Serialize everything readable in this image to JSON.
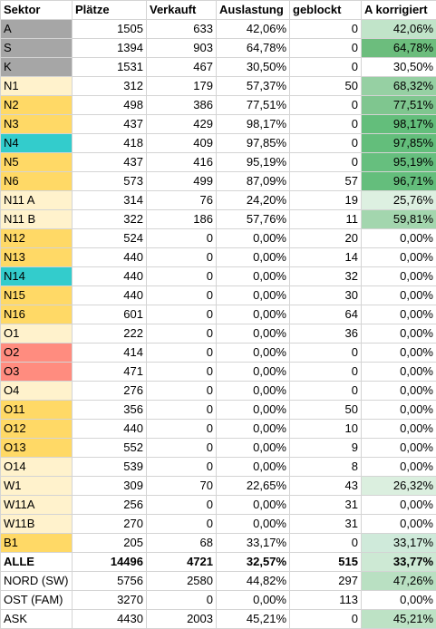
{
  "headers": [
    "Sektor",
    "Plätze",
    "Verkauft",
    "Auslastung",
    "geblockt",
    "A korrigiert"
  ],
  "rows": [
    {
      "sektor": "A",
      "plaetze": "1505",
      "verkauft": "633",
      "auslastung": "42,06%",
      "geblockt": "0",
      "korr": "42,06%",
      "sektor_color": "#a6a6a6",
      "korr_color": "#c1e4c9"
    },
    {
      "sektor": "S",
      "plaetze": "1394",
      "verkauft": "903",
      "auslastung": "64,78%",
      "geblockt": "0",
      "korr": "64,78%",
      "sektor_color": "#a6a6a6",
      "korr_color": "#6cbd7d"
    },
    {
      "sektor": "K",
      "plaetze": "1531",
      "verkauft": "467",
      "auslastung": "30,50%",
      "geblockt": "0",
      "korr": "30,50%",
      "sektor_color": "#a6a6a6",
      "korr_color": "#ffffff"
    },
    {
      "sektor": "N1",
      "plaetze": "312",
      "verkauft": "179",
      "auslastung": "57,37%",
      "geblockt": "50",
      "korr": "68,32%",
      "sektor_color": "#fff2cc",
      "korr_color": "#96d0a3"
    },
    {
      "sektor": "N2",
      "plaetze": "498",
      "verkauft": "386",
      "auslastung": "77,51%",
      "geblockt": "0",
      "korr": "77,51%",
      "sektor_color": "#ffd966",
      "korr_color": "#7fc68f"
    },
    {
      "sektor": "N3",
      "plaetze": "437",
      "verkauft": "429",
      "auslastung": "98,17%",
      "geblockt": "0",
      "korr": "98,17%",
      "sektor_color": "#ffd966",
      "korr_color": "#63be7b"
    },
    {
      "sektor": "N4",
      "plaetze": "418",
      "verkauft": "409",
      "auslastung": "97,85%",
      "geblockt": "0",
      "korr": "97,85%",
      "sektor_color": "#33cccc",
      "korr_color": "#63be7b"
    },
    {
      "sektor": "N5",
      "plaetze": "437",
      "verkauft": "416",
      "auslastung": "95,19%",
      "geblockt": "0",
      "korr": "95,19%",
      "sektor_color": "#ffd966",
      "korr_color": "#66bf7e"
    },
    {
      "sektor": "N6",
      "plaetze": "573",
      "verkauft": "499",
      "auslastung": "87,09%",
      "geblockt": "57",
      "korr": "96,71%",
      "sektor_color": "#ffd966",
      "korr_color": "#64be7c"
    },
    {
      "sektor": "N11 A",
      "plaetze": "314",
      "verkauft": "76",
      "auslastung": "24,20%",
      "geblockt": "19",
      "korr": "25,76%",
      "sektor_color": "#fff2cc",
      "korr_color": "#ddf0e1"
    },
    {
      "sektor": "N11 B",
      "plaetze": "322",
      "verkauft": "186",
      "auslastung": "57,76%",
      "geblockt": "11",
      "korr": "59,81%",
      "sektor_color": "#fff2cc",
      "korr_color": "#a3d6ae"
    },
    {
      "sektor": "N12",
      "plaetze": "524",
      "verkauft": "0",
      "auslastung": "0,00%",
      "geblockt": "20",
      "korr": "0,00%",
      "sektor_color": "#ffd966",
      "korr_color": "#ffffff"
    },
    {
      "sektor": "N13",
      "plaetze": "440",
      "verkauft": "0",
      "auslastung": "0,00%",
      "geblockt": "14",
      "korr": "0,00%",
      "sektor_color": "#ffd966",
      "korr_color": "#ffffff"
    },
    {
      "sektor": "N14",
      "plaetze": "440",
      "verkauft": "0",
      "auslastung": "0,00%",
      "geblockt": "32",
      "korr": "0,00%",
      "sektor_color": "#33cccc",
      "korr_color": "#ffffff"
    },
    {
      "sektor": "N15",
      "plaetze": "440",
      "verkauft": "0",
      "auslastung": "0,00%",
      "geblockt": "30",
      "korr": "0,00%",
      "sektor_color": "#ffd966",
      "korr_color": "#ffffff"
    },
    {
      "sektor": "N16",
      "plaetze": "601",
      "verkauft": "0",
      "auslastung": "0,00%",
      "geblockt": "64",
      "korr": "0,00%",
      "sektor_color": "#ffd966",
      "korr_color": "#ffffff"
    },
    {
      "sektor": "O1",
      "plaetze": "222",
      "verkauft": "0",
      "auslastung": "0,00%",
      "geblockt": "36",
      "korr": "0,00%",
      "sektor_color": "#fff2cc",
      "korr_color": "#ffffff"
    },
    {
      "sektor": "O2",
      "plaetze": "414",
      "verkauft": "0",
      "auslastung": "0,00%",
      "geblockt": "0",
      "korr": "0,00%",
      "sektor_color": "#ff8c7f",
      "korr_color": "#ffffff"
    },
    {
      "sektor": "O3",
      "plaetze": "471",
      "verkauft": "0",
      "auslastung": "0,00%",
      "geblockt": "0",
      "korr": "0,00%",
      "sektor_color": "#ff8c7f",
      "korr_color": "#ffffff"
    },
    {
      "sektor": "O4",
      "plaetze": "276",
      "verkauft": "0",
      "auslastung": "0,00%",
      "geblockt": "0",
      "korr": "0,00%",
      "sektor_color": "#fff2cc",
      "korr_color": "#ffffff"
    },
    {
      "sektor": "O11",
      "plaetze": "356",
      "verkauft": "0",
      "auslastung": "0,00%",
      "geblockt": "50",
      "korr": "0,00%",
      "sektor_color": "#ffd966",
      "korr_color": "#ffffff"
    },
    {
      "sektor": "O12",
      "plaetze": "440",
      "verkauft": "0",
      "auslastung": "0,00%",
      "geblockt": "10",
      "korr": "0,00%",
      "sektor_color": "#ffd966",
      "korr_color": "#ffffff"
    },
    {
      "sektor": "O13",
      "plaetze": "552",
      "verkauft": "0",
      "auslastung": "0,00%",
      "geblockt": "9",
      "korr": "0,00%",
      "sektor_color": "#ffd966",
      "korr_color": "#ffffff"
    },
    {
      "sektor": "O14",
      "plaetze": "539",
      "verkauft": "0",
      "auslastung": "0,00%",
      "geblockt": "8",
      "korr": "0,00%",
      "sektor_color": "#fff2cc",
      "korr_color": "#ffffff"
    },
    {
      "sektor": "W1",
      "plaetze": "309",
      "verkauft": "70",
      "auslastung": "22,65%",
      "geblockt": "43",
      "korr": "26,32%",
      "sektor_color": "#fff2cc",
      "korr_color": "#dbefdf"
    },
    {
      "sektor": "W11A",
      "plaetze": "256",
      "verkauft": "0",
      "auslastung": "0,00%",
      "geblockt": "31",
      "korr": "0,00%",
      "sektor_color": "#fff2cc",
      "korr_color": "#ffffff"
    },
    {
      "sektor": "W11B",
      "plaetze": "270",
      "verkauft": "0",
      "auslastung": "0,00%",
      "geblockt": "31",
      "korr": "0,00%",
      "sektor_color": "#fff2cc",
      "korr_color": "#ffffff"
    },
    {
      "sektor": "B1",
      "plaetze": "205",
      "verkauft": "68",
      "auslastung": "33,17%",
      "geblockt": "0",
      "korr": "33,17%",
      "sektor_color": "#ffd966",
      "korr_color": "#cfeada"
    },
    {
      "sektor": "ALLE",
      "plaetze": "14496",
      "verkauft": "4721",
      "auslastung": "32,57%",
      "geblockt": "515",
      "korr": "33,77%",
      "sektor_color": "#ffffff",
      "korr_color": "#cde9d4",
      "bold": true
    },
    {
      "sektor": "NORD (SW)",
      "plaetze": "5756",
      "verkauft": "2580",
      "auslastung": "44,82%",
      "geblockt": "297",
      "korr": "47,26%",
      "sektor_color": "#ffffff",
      "korr_color": "#b9e0c2"
    },
    {
      "sektor": "OST (FAM)",
      "plaetze": "3270",
      "verkauft": "0",
      "auslastung": "0,00%",
      "geblockt": "113",
      "korr": "0,00%",
      "sektor_color": "#ffffff",
      "korr_color": "#ffffff"
    },
    {
      "sektor": "ASK",
      "plaetze": "4430",
      "verkauft": "2003",
      "auslastung": "45,21%",
      "geblockt": "0",
      "korr": "45,21%",
      "sektor_color": "#ffffff",
      "korr_color": "#bde2c5"
    }
  ]
}
